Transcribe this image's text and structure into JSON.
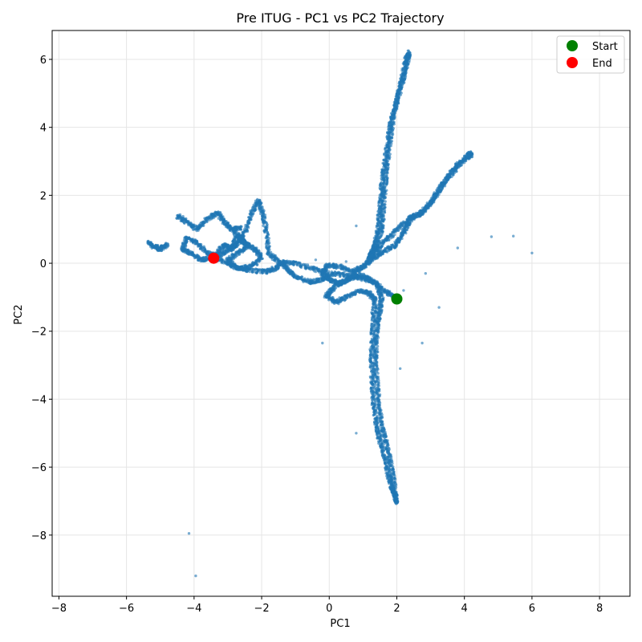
{
  "chart_data": {
    "type": "scatter",
    "title": "Pre ITUG - PC1 vs PC2 Trajectory",
    "xlabel": "PC1",
    "ylabel": "PC2",
    "xlim": [
      -8.2,
      8.9
    ],
    "ylim": [
      -9.8,
      6.85
    ],
    "xticks": [
      -8,
      -6,
      -4,
      -2,
      0,
      2,
      4,
      6,
      8
    ],
    "yticks": [
      -8,
      -6,
      -4,
      -2,
      0,
      2,
      4,
      6
    ],
    "grid": true,
    "legend_position": "top-right",
    "colors": {
      "trajectory": "#1f77b4",
      "start": "#008000",
      "end": "#ff0000",
      "grid": "#e5e5e5"
    },
    "series": [
      {
        "name": "trajectory",
        "points_per_segment": 45,
        "paths": [
          [
            [
              2.0,
              -1.05
            ],
            [
              1.85,
              -0.95
            ],
            [
              1.55,
              -0.75
            ],
            [
              1.25,
              -0.5
            ],
            [
              0.95,
              -0.35
            ],
            [
              0.6,
              -0.45
            ],
            [
              0.3,
              -0.6
            ],
            [
              0.0,
              -0.5
            ],
            [
              -0.2,
              -0.3
            ],
            [
              -0.05,
              -0.05
            ],
            [
              0.3,
              -0.1
            ],
            [
              0.7,
              -0.25
            ],
            [
              1.0,
              -0.1
            ],
            [
              1.3,
              0.15
            ],
            [
              1.6,
              0.35
            ],
            [
              1.9,
              0.5
            ],
            [
              2.1,
              0.75
            ],
            [
              2.3,
              1.1
            ],
            [
              2.4,
              1.35
            ]
          ],
          [
            [
              2.4,
              1.35
            ],
            [
              2.7,
              1.45
            ],
            [
              3.0,
              1.75
            ],
            [
              3.2,
              2.1
            ],
            [
              3.5,
              2.5
            ],
            [
              3.8,
              2.85
            ],
            [
              4.1,
              3.15
            ],
            [
              4.2,
              3.25
            ]
          ],
          [
            [
              4.2,
              3.2
            ],
            [
              3.8,
              2.9
            ],
            [
              3.4,
              2.4
            ],
            [
              3.1,
              1.9
            ],
            [
              2.8,
              1.55
            ],
            [
              2.4,
              1.3
            ],
            [
              2.0,
              1.0
            ],
            [
              1.7,
              0.7
            ],
            [
              1.4,
              0.4
            ],
            [
              1.2,
              0.2
            ]
          ],
          [
            [
              1.2,
              0.2
            ],
            [
              1.35,
              0.5
            ],
            [
              1.45,
              1.0
            ],
            [
              1.5,
              1.6
            ],
            [
              1.55,
              2.2
            ],
            [
              1.62,
              2.8
            ],
            [
              1.72,
              3.5
            ],
            [
              1.82,
              4.1
            ],
            [
              1.98,
              4.7
            ],
            [
              2.12,
              5.2
            ],
            [
              2.25,
              5.7
            ],
            [
              2.33,
              6.05
            ],
            [
              2.35,
              6.2
            ]
          ],
          [
            [
              2.3,
              6.15
            ],
            [
              2.2,
              5.6
            ],
            [
              2.05,
              5.0
            ],
            [
              1.9,
              4.3
            ],
            [
              1.8,
              3.6
            ],
            [
              1.7,
              2.9
            ],
            [
              1.65,
              2.2
            ],
            [
              1.6,
              1.6
            ],
            [
              1.55,
              1.0
            ],
            [
              1.4,
              0.5
            ],
            [
              1.2,
              0.1
            ],
            [
              0.8,
              -0.3
            ],
            [
              0.4,
              -0.55
            ],
            [
              0.1,
              -0.75
            ],
            [
              -0.1,
              -0.95
            ],
            [
              0.2,
              -1.15
            ],
            [
              0.5,
              -1.0
            ],
            [
              0.9,
              -0.8
            ],
            [
              1.2,
              -0.9
            ],
            [
              1.35,
              -1.1
            ]
          ],
          [
            [
              1.35,
              -1.1
            ],
            [
              1.32,
              -1.6
            ],
            [
              1.28,
              -2.2
            ],
            [
              1.25,
              -2.9
            ],
            [
              1.28,
              -3.6
            ],
            [
              1.32,
              -4.2
            ],
            [
              1.4,
              -4.8
            ],
            [
              1.5,
              -5.2
            ],
            [
              1.65,
              -5.7
            ],
            [
              1.75,
              -6.2
            ],
            [
              1.85,
              -6.6
            ],
            [
              1.95,
              -6.8
            ],
            [
              1.98,
              -7.05
            ]
          ],
          [
            [
              1.98,
              -7.05
            ],
            [
              1.92,
              -6.5
            ],
            [
              1.82,
              -5.9
            ],
            [
              1.72,
              -5.4
            ],
            [
              1.58,
              -4.9
            ],
            [
              1.48,
              -4.3
            ],
            [
              1.42,
              -3.7
            ],
            [
              1.38,
              -3.0
            ],
            [
              1.38,
              -2.4
            ],
            [
              1.42,
              -1.8
            ],
            [
              1.5,
              -1.4
            ],
            [
              1.55,
              -1.0
            ],
            [
              1.4,
              -0.6
            ],
            [
              1.0,
              -0.45
            ],
            [
              0.5,
              -0.35
            ],
            [
              0.0,
              -0.3
            ],
            [
              -0.5,
              -0.15
            ],
            [
              -1.0,
              0.0
            ],
            [
              -1.5,
              0.05
            ]
          ],
          [
            [
              -1.5,
              0.05
            ],
            [
              -1.8,
              0.3
            ],
            [
              -1.85,
              0.9
            ],
            [
              -1.95,
              1.4
            ],
            [
              -2.1,
              1.85
            ],
            [
              -2.3,
              1.45
            ],
            [
              -2.5,
              0.9
            ],
            [
              -2.7,
              0.6
            ],
            [
              -2.9,
              0.4
            ],
            [
              -3.1,
              0.55
            ],
            [
              -3.3,
              0.3
            ],
            [
              -3.5,
              0.15
            ],
            [
              -3.8,
              0.1
            ],
            [
              -4.1,
              0.3
            ],
            [
              -4.35,
              0.4
            ],
            [
              -4.2,
              0.75
            ],
            [
              -3.9,
              0.6
            ],
            [
              -3.6,
              0.3
            ],
            [
              -3.3,
              0.2
            ],
            [
              -3.0,
              0.35
            ],
            [
              -2.7,
              0.8
            ],
            [
              -2.5,
              0.6
            ],
            [
              -2.2,
              0.4
            ],
            [
              -2.0,
              0.2
            ],
            [
              -2.3,
              -0.1
            ],
            [
              -2.7,
              -0.15
            ],
            [
              -3.0,
              0.0
            ],
            [
              -3.42,
              0.15
            ]
          ],
          [
            [
              -2.8,
              0.9
            ],
            [
              -2.6,
              0.7
            ],
            [
              -2.4,
              0.5
            ],
            [
              -2.7,
              0.3
            ],
            [
              -3.0,
              0.1
            ],
            [
              -2.8,
              -0.1
            ],
            [
              -2.4,
              -0.2
            ],
            [
              -1.9,
              -0.25
            ],
            [
              -1.6,
              -0.15
            ],
            [
              -1.4,
              0.0
            ],
            [
              -1.2,
              -0.2
            ],
            [
              -1.0,
              -0.4
            ],
            [
              -0.6,
              -0.55
            ],
            [
              -0.3,
              -0.5
            ],
            [
              0.0,
              -0.4
            ]
          ],
          [
            [
              -4.5,
              1.4
            ],
            [
              -4.2,
              1.2
            ],
            [
              -3.9,
              1.0
            ],
            [
              -3.6,
              1.3
            ],
            [
              -3.3,
              1.5
            ],
            [
              -3.1,
              1.2
            ],
            [
              -2.9,
              1.0
            ],
            [
              -2.6,
              1.05
            ]
          ],
          [
            [
              -5.35,
              0.6
            ],
            [
              -5.2,
              0.5
            ],
            [
              -5.0,
              0.42
            ],
            [
              -4.8,
              0.55
            ]
          ]
        ],
        "outliers": [
          [
            -4.15,
            -7.95
          ],
          [
            -3.95,
            -9.2
          ],
          [
            -0.2,
            -2.35
          ],
          [
            0.8,
            -5.0
          ],
          [
            2.75,
            -2.35
          ],
          [
            2.1,
            -3.1
          ],
          [
            3.25,
            -1.3
          ],
          [
            2.85,
            -0.3
          ],
          [
            3.8,
            0.45
          ],
          [
            4.8,
            0.78
          ],
          [
            5.45,
            0.8
          ],
          [
            6.0,
            0.3
          ],
          [
            0.8,
            1.1
          ],
          [
            1.25,
            -1.45
          ],
          [
            2.2,
            -0.8
          ],
          [
            0.5,
            0.05
          ],
          [
            -0.4,
            0.1
          ]
        ]
      },
      {
        "name": "Start",
        "x": [
          2.0
        ],
        "y": [
          -1.05
        ]
      },
      {
        "name": "End",
        "x": [
          -3.42
        ],
        "y": [
          0.15
        ]
      }
    ]
  }
}
